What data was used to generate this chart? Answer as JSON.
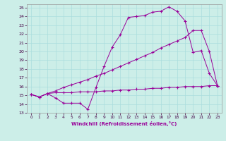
{
  "title": "",
  "xlabel": "Windchill (Refroidissement éolien,°C)",
  "ylabel": "",
  "bg_color": "#cceee8",
  "line_color": "#990099",
  "grid_color": "#aadddd",
  "xlim": [
    -0.5,
    23.5
  ],
  "ylim": [
    13,
    25.4
  ],
  "xticks": [
    0,
    1,
    2,
    3,
    4,
    5,
    6,
    7,
    8,
    9,
    10,
    11,
    12,
    13,
    14,
    15,
    16,
    17,
    18,
    19,
    20,
    21,
    22,
    23
  ],
  "yticks": [
    13,
    14,
    15,
    16,
    17,
    18,
    19,
    20,
    21,
    22,
    23,
    24,
    25
  ],
  "line1_x": [
    0,
    1,
    2,
    3,
    4,
    5,
    6,
    7,
    8,
    9,
    10,
    11,
    12,
    13,
    14,
    15,
    16,
    17,
    18,
    19,
    20,
    21,
    22,
    23
  ],
  "line1_y": [
    15.1,
    14.8,
    15.2,
    14.7,
    14.1,
    14.1,
    14.1,
    13.4,
    15.9,
    18.3,
    20.5,
    21.9,
    23.9,
    24.0,
    24.1,
    24.5,
    24.6,
    25.1,
    24.6,
    23.5,
    19.9,
    20.1,
    17.5,
    16.1
  ],
  "line2_x": [
    0,
    1,
    2,
    3,
    4,
    5,
    6,
    7,
    8,
    9,
    10,
    11,
    12,
    13,
    14,
    15,
    16,
    17,
    18,
    19,
    20,
    21,
    22,
    23
  ],
  "line2_y": [
    15.1,
    14.8,
    15.2,
    15.5,
    15.9,
    16.2,
    16.5,
    16.8,
    17.2,
    17.5,
    17.9,
    18.3,
    18.7,
    19.1,
    19.5,
    19.9,
    20.4,
    20.8,
    21.2,
    21.6,
    22.4,
    22.4,
    20.0,
    16.1
  ],
  "line3_x": [
    0,
    1,
    2,
    3,
    4,
    5,
    6,
    7,
    8,
    9,
    10,
    11,
    12,
    13,
    14,
    15,
    16,
    17,
    18,
    19,
    20,
    21,
    22,
    23
  ],
  "line3_y": [
    15.1,
    14.8,
    15.2,
    15.3,
    15.3,
    15.3,
    15.4,
    15.4,
    15.4,
    15.5,
    15.5,
    15.6,
    15.6,
    15.7,
    15.7,
    15.8,
    15.8,
    15.9,
    15.9,
    16.0,
    16.0,
    16.0,
    16.1,
    16.1
  ]
}
